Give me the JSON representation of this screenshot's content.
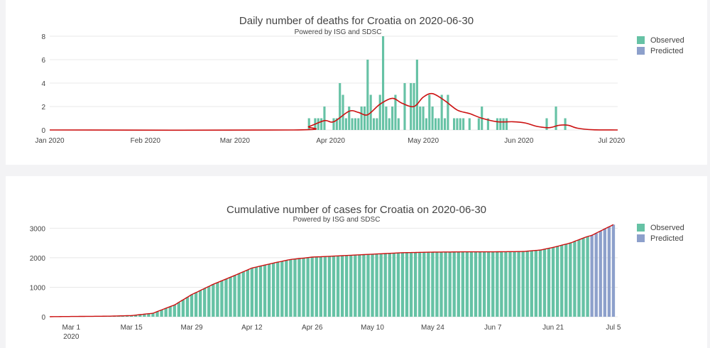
{
  "colors": {
    "observed": "#66c2a5",
    "predicted": "#8da0cb",
    "trend": "#cc1111",
    "grid": "#e8e8e8",
    "axis_text": "#444444"
  },
  "chart_data": [
    {
      "type": "bar",
      "title": "Daily number of deaths for Croatia on 2020-06-30",
      "subtitle": "Powered by ISG and SDSC",
      "xlabel": "",
      "ylabel": "",
      "ylim": [
        0,
        8
      ],
      "yticks": [
        0,
        2,
        4,
        6,
        8
      ],
      "xrange": [
        "2020-01-01",
        "2020-07-03"
      ],
      "xticks": [
        {
          "date": "2020-01-01",
          "label": "Jan 2020"
        },
        {
          "date": "2020-02-01",
          "label": "Feb 2020"
        },
        {
          "date": "2020-03-01",
          "label": "Mar 2020"
        },
        {
          "date": "2020-04-01",
          "label": "Apr 2020"
        },
        {
          "date": "2020-05-01",
          "label": "May 2020"
        },
        {
          "date": "2020-06-01",
          "label": "Jun 2020"
        },
        {
          "date": "2020-07-01",
          "label": "Jul 2020"
        }
      ],
      "legend": [
        "Observed",
        "Predicted"
      ],
      "legend_position": "top-right",
      "grid": true,
      "series": [
        {
          "name": "Observed",
          "x": [
            "2020-03-25",
            "2020-03-27",
            "2020-03-28",
            "2020-03-29",
            "2020-03-30",
            "2020-04-02",
            "2020-04-03",
            "2020-04-04",
            "2020-04-05",
            "2020-04-06",
            "2020-04-07",
            "2020-04-08",
            "2020-04-09",
            "2020-04-10",
            "2020-04-11",
            "2020-04-12",
            "2020-04-13",
            "2020-04-14",
            "2020-04-15",
            "2020-04-16",
            "2020-04-17",
            "2020-04-18",
            "2020-04-19",
            "2020-04-20",
            "2020-04-21",
            "2020-04-22",
            "2020-04-23",
            "2020-04-25",
            "2020-04-27",
            "2020-04-28",
            "2020-04-29",
            "2020-04-30",
            "2020-05-01",
            "2020-05-02",
            "2020-05-03",
            "2020-05-04",
            "2020-05-05",
            "2020-05-06",
            "2020-05-07",
            "2020-05-08",
            "2020-05-09",
            "2020-05-11",
            "2020-05-12",
            "2020-05-13",
            "2020-05-14",
            "2020-05-16",
            "2020-05-19",
            "2020-05-20",
            "2020-05-22",
            "2020-05-25",
            "2020-05-26",
            "2020-05-27",
            "2020-05-28",
            "2020-06-10",
            "2020-06-13",
            "2020-06-16"
          ],
          "values": [
            1,
            1,
            1,
            1,
            2,
            1,
            1,
            4,
            3,
            1,
            2,
            1,
            1,
            1,
            2,
            2,
            6,
            3,
            1,
            1,
            3,
            8,
            2,
            1,
            2,
            3,
            1,
            4,
            4,
            4,
            6,
            2,
            2,
            1,
            3,
            2,
            1,
            1,
            3,
            1,
            3,
            1,
            1,
            1,
            1,
            1,
            1,
            2,
            1,
            1,
            1,
            1,
            1,
            1,
            2,
            1
          ]
        }
      ],
      "trend": {
        "x": [
          "2020-01-01",
          "2020-03-20",
          "2020-03-25",
          "2020-03-30",
          "2020-04-02",
          "2020-04-07",
          "2020-04-10",
          "2020-04-13",
          "2020-04-17",
          "2020-04-21",
          "2020-04-24",
          "2020-04-28",
          "2020-05-01",
          "2020-05-04",
          "2020-05-08",
          "2020-05-12",
          "2020-05-16",
          "2020-05-20",
          "2020-05-25",
          "2020-05-30",
          "2020-06-03",
          "2020-06-07",
          "2020-06-11",
          "2020-06-14",
          "2020-06-17",
          "2020-06-20",
          "2020-06-25",
          "2020-07-03"
        ],
        "values": [
          0,
          0,
          0.3,
          0.8,
          0.7,
          1.6,
          1.5,
          1.3,
          2.2,
          2.7,
          2.3,
          2.0,
          2.8,
          3.1,
          2.5,
          1.7,
          1.4,
          1.0,
          0.7,
          0.7,
          0.6,
          0.3,
          0.2,
          0.4,
          0.4,
          0.15,
          0.02,
          0
        ]
      }
    },
    {
      "type": "bar",
      "title": "Cumulative number of cases for Croatia on 2020-06-30",
      "subtitle": "Powered by ISG and SDSC",
      "xlabel": "",
      "ylabel": "",
      "ylim": [
        0,
        3200
      ],
      "yticks": [
        0,
        1000,
        2000,
        3000
      ],
      "xrange": [
        "2020-02-25",
        "2020-07-06"
      ],
      "xticks": [
        {
          "date": "2020-03-01",
          "label": "Mar 1",
          "sublabel": "2020"
        },
        {
          "date": "2020-03-15",
          "label": "Mar 15"
        },
        {
          "date": "2020-03-29",
          "label": "Mar 29"
        },
        {
          "date": "2020-04-12",
          "label": "Apr 12"
        },
        {
          "date": "2020-04-26",
          "label": "Apr 26"
        },
        {
          "date": "2020-05-10",
          "label": "May 10"
        },
        {
          "date": "2020-05-24",
          "label": "May 24"
        },
        {
          "date": "2020-06-07",
          "label": "Jun 7"
        },
        {
          "date": "2020-06-21",
          "label": "Jun 21"
        },
        {
          "date": "2020-07-05",
          "label": "Jul 5"
        }
      ],
      "legend": [
        "Observed",
        "Predicted"
      ],
      "legend_position": "top-right",
      "grid": true,
      "series": [
        {
          "name": "Observed",
          "daily": true,
          "start": "2020-02-25",
          "end": "2020-06-29",
          "anchors": {
            "x": [
              "2020-02-25",
              "2020-03-10",
              "2020-03-15",
              "2020-03-20",
              "2020-03-25",
              "2020-03-29",
              "2020-04-03",
              "2020-04-08",
              "2020-04-12",
              "2020-04-17",
              "2020-04-21",
              "2020-04-26",
              "2020-05-03",
              "2020-05-10",
              "2020-05-17",
              "2020-05-24",
              "2020-06-01",
              "2020-06-07",
              "2020-06-14",
              "2020-06-18",
              "2020-06-21",
              "2020-06-25",
              "2020-06-29"
            ],
            "values": [
              3,
              20,
              40,
              120,
              400,
              750,
              1100,
              1400,
              1650,
              1820,
              1940,
              2020,
              2070,
              2120,
              2170,
              2190,
              2200,
              2200,
              2210,
              2260,
              2350,
              2500,
              2720
            ]
          }
        },
        {
          "name": "Predicted",
          "daily": true,
          "start": "2020-06-30",
          "end": "2020-07-05",
          "anchors": {
            "x": [
              "2020-06-30",
              "2020-07-05"
            ],
            "values": [
              2760,
              3120
            ]
          }
        }
      ]
    }
  ]
}
